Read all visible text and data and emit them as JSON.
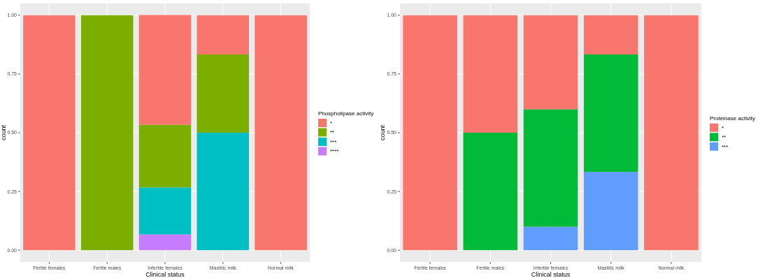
{
  "chart_data": [
    {
      "type": "bar",
      "stacked": true,
      "xlabel": "Clinical status",
      "ylabel": "count",
      "legend_title": "Phospholipase activity",
      "legend": "right",
      "grid": true,
      "categories": [
        "Fertile females",
        "Fertile males",
        "Infertile females",
        "Mastitic milk",
        "Normal milk"
      ],
      "ylim": [
        -0.05,
        1.05
      ],
      "yticks": [
        {
          "value": 0,
          "label": "0.00"
        },
        {
          "value": 0.25,
          "label": "0.25"
        },
        {
          "value": 0.5,
          "label": "0.50"
        },
        {
          "value": 0.75,
          "label": "0.75"
        },
        {
          "value": 1,
          "label": "1.00"
        }
      ],
      "series": [
        {
          "name": "****",
          "color": "#c77cff",
          "values": [
            null,
            null,
            0.067,
            null,
            null
          ]
        },
        {
          "name": "***",
          "color": "#00bfc4",
          "values": [
            null,
            null,
            0.2,
            0.5,
            null
          ]
        },
        {
          "name": "**",
          "color": "#7cae00",
          "values": [
            null,
            1,
            0.267,
            0.333,
            null
          ]
        },
        {
          "name": "*",
          "color": "#f8766d",
          "values": [
            1,
            null,
            0.467,
            0.167,
            1
          ]
        }
      ]
    },
    {
      "type": "bar",
      "stacked": true,
      "xlabel": "Clinical status",
      "ylabel": "count",
      "legend_title": "Proteinase activity",
      "legend": "right",
      "grid": true,
      "categories": [
        "Fertile females",
        "Fertile males",
        "Infertile females",
        "Mastitic milk",
        "Normal milk"
      ],
      "ylim": [
        -0.05,
        1.05
      ],
      "yticks": [
        {
          "value": 0,
          "label": "0.00"
        },
        {
          "value": 0.25,
          "label": "0.25"
        },
        {
          "value": 0.5,
          "label": "0.50"
        },
        {
          "value": 0.75,
          "label": "0.75"
        },
        {
          "value": 1,
          "label": "1.00"
        }
      ],
      "series": [
        {
          "name": "***",
          "color": "#619cff",
          "values": [
            null,
            null,
            0.1,
            0.333,
            null
          ]
        },
        {
          "name": "**",
          "color": "#00ba38",
          "values": [
            null,
            0.5,
            0.5,
            0.5,
            null
          ]
        },
        {
          "name": "*",
          "color": "#f8766d",
          "values": [
            1,
            0.5,
            0.4,
            0.167,
            1
          ]
        }
      ]
    }
  ]
}
